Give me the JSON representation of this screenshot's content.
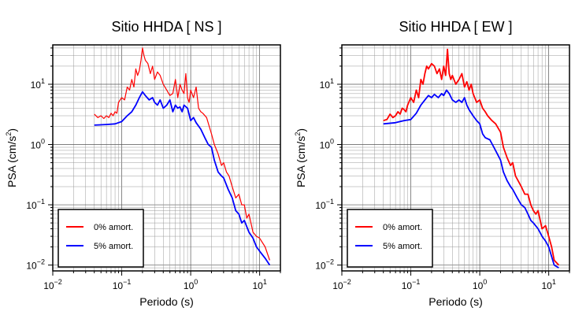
{
  "chart_data": [
    {
      "type": "line",
      "title": "Sitio HHDA [ NS ]",
      "xlabel": "Periodo (s)",
      "ylabel_text": "PSA (cm/s",
      "ylabel_sup": "2",
      "ylabel_close": ")",
      "x_scale": "log",
      "y_scale": "log",
      "xlim": [
        0.01,
        20
      ],
      "ylim": [
        0.008,
        45
      ],
      "grid": true,
      "legend": "bottom-left",
      "x_ticks": [
        {
          "base": "10",
          "exp": "−2"
        },
        {
          "base": "10",
          "exp": "−1"
        },
        {
          "base": "10",
          "exp": "0"
        },
        {
          "base": "10",
          "exp": "1"
        }
      ],
      "y_ticks": [
        {
          "base": "10",
          "exp": "−2"
        },
        {
          "base": "10",
          "exp": "−1"
        },
        {
          "base": "10",
          "exp": "0"
        },
        {
          "base": "10",
          "exp": "1"
        }
      ],
      "series": [
        {
          "name": "0% amort.",
          "color": "#ff0000",
          "x": [
            0.04,
            0.045,
            0.05,
            0.055,
            0.06,
            0.065,
            0.07,
            0.075,
            0.08,
            0.085,
            0.09,
            0.1,
            0.11,
            0.12,
            0.13,
            0.14,
            0.15,
            0.16,
            0.17,
            0.18,
            0.19,
            0.2,
            0.21,
            0.22,
            0.24,
            0.26,
            0.28,
            0.3,
            0.33,
            0.36,
            0.4,
            0.45,
            0.5,
            0.55,
            0.6,
            0.65,
            0.7,
            0.75,
            0.8,
            0.85,
            0.9,
            0.95,
            1.0,
            1.1,
            1.2,
            1.3,
            1.4,
            1.5,
            1.7,
            2.0,
            2.2,
            2.5,
            2.8,
            3.0,
            3.3,
            3.6,
            4.0,
            4.5,
            5.0,
            5.5,
            6.0,
            6.5,
            7.0,
            8.0,
            9.0,
            10.0,
            12.0,
            14.0
          ],
          "y": [
            3.2,
            2.8,
            3.0,
            2.7,
            3.0,
            2.8,
            3.3,
            3.0,
            3.5,
            3.3,
            5.0,
            6.0,
            5.5,
            9.0,
            8.0,
            12.0,
            9.0,
            18.0,
            14.0,
            17.0,
            25.0,
            40.0,
            30.0,
            25.0,
            22.0,
            15.0,
            20.0,
            12.0,
            16.0,
            14.0,
            10.0,
            8.0,
            6.5,
            7.0,
            12.0,
            6.0,
            10.0,
            8.0,
            7.0,
            15.0,
            6.0,
            5.0,
            8.0,
            6.0,
            9.0,
            4.0,
            3.5,
            3.3,
            2.8,
            1.5,
            1.0,
            0.7,
            0.45,
            0.5,
            0.35,
            0.3,
            0.2,
            0.13,
            0.15,
            0.1,
            0.1,
            0.06,
            0.07,
            0.035,
            0.03,
            0.028,
            0.02,
            0.012
          ]
        },
        {
          "name": "5% amort.",
          "color": "#0000ff",
          "x": [
            0.04,
            0.06,
            0.08,
            0.1,
            0.12,
            0.14,
            0.16,
            0.18,
            0.2,
            0.22,
            0.25,
            0.28,
            0.3,
            0.33,
            0.36,
            0.4,
            0.45,
            0.5,
            0.55,
            0.6,
            0.65,
            0.7,
            0.75,
            0.8,
            0.9,
            1.0,
            1.1,
            1.2,
            1.4,
            1.6,
            1.8,
            2.0,
            2.2,
            2.5,
            2.8,
            3.0,
            3.5,
            4.0,
            4.5,
            5.0,
            5.5,
            6.0,
            7.0,
            8.0,
            9.0,
            10.0,
            12.0,
            14.0
          ],
          "y": [
            2.1,
            2.15,
            2.2,
            2.4,
            3.0,
            3.5,
            4.5,
            6.0,
            7.5,
            6.5,
            5.5,
            6.0,
            5.0,
            4.5,
            5.5,
            4.0,
            4.5,
            5.5,
            3.5,
            4.5,
            4.0,
            4.2,
            3.5,
            4.5,
            4.0,
            2.5,
            2.8,
            2.3,
            1.8,
            1.3,
            1.0,
            0.9,
            0.55,
            0.35,
            0.3,
            0.28,
            0.18,
            0.13,
            0.08,
            0.07,
            0.05,
            0.055,
            0.035,
            0.028,
            0.02,
            0.017,
            0.013,
            0.01
          ]
        }
      ]
    },
    {
      "type": "line",
      "title": "Sitio HHDA [ EW ]",
      "xlabel": "Periodo (s)",
      "ylabel_text": "PSA (cm/s",
      "ylabel_sup": "2",
      "ylabel_close": ")",
      "x_scale": "log",
      "y_scale": "log",
      "xlim": [
        0.01,
        20
      ],
      "ylim": [
        0.008,
        45
      ],
      "grid": true,
      "legend": "bottom-left",
      "x_ticks": [
        {
          "base": "10",
          "exp": "−2"
        },
        {
          "base": "10",
          "exp": "−1"
        },
        {
          "base": "10",
          "exp": "0"
        },
        {
          "base": "10",
          "exp": "1"
        }
      ],
      "y_ticks": [
        {
          "base": "10",
          "exp": "−2"
        },
        {
          "base": "10",
          "exp": "−1"
        },
        {
          "base": "10",
          "exp": "0"
        },
        {
          "base": "10",
          "exp": "1"
        }
      ],
      "series": [
        {
          "name": "0% amort.",
          "color": "#ff0000",
          "x": [
            0.04,
            0.045,
            0.05,
            0.055,
            0.06,
            0.065,
            0.07,
            0.075,
            0.08,
            0.085,
            0.09,
            0.1,
            0.11,
            0.12,
            0.13,
            0.14,
            0.15,
            0.16,
            0.17,
            0.18,
            0.2,
            0.22,
            0.24,
            0.26,
            0.28,
            0.3,
            0.32,
            0.34,
            0.36,
            0.38,
            0.4,
            0.45,
            0.5,
            0.55,
            0.6,
            0.65,
            0.7,
            0.75,
            0.8,
            0.9,
            1.0,
            1.1,
            1.2,
            1.3,
            1.5,
            1.7,
            2.0,
            2.2,
            2.5,
            2.8,
            3.0,
            3.3,
            3.6,
            4.0,
            4.5,
            5.0,
            5.5,
            6.0,
            6.5,
            7.0,
            8.0,
            9.0,
            10.0,
            11.0,
            12.0,
            14.0
          ],
          "y": [
            2.5,
            2.6,
            3.2,
            2.8,
            3.0,
            3.5,
            3.2,
            4.0,
            3.8,
            3.5,
            4.5,
            6.0,
            5.0,
            8.0,
            6.0,
            12.0,
            10.0,
            15.0,
            20.0,
            18.0,
            22.0,
            20.0,
            15.0,
            18.0,
            12.0,
            20.0,
            14.0,
            38.0,
            15.0,
            12.0,
            14.0,
            10.0,
            12.0,
            15.0,
            9.0,
            11.0,
            8.0,
            10.0,
            7.0,
            5.0,
            5.5,
            4.0,
            3.5,
            3.0,
            2.5,
            2.2,
            1.6,
            0.9,
            0.6,
            0.45,
            0.5,
            0.3,
            0.25,
            0.2,
            0.15,
            0.15,
            0.1,
            0.08,
            0.07,
            0.08,
            0.04,
            0.045,
            0.03,
            0.02,
            0.012,
            0.01
          ]
        },
        {
          "name": "5% amort.",
          "color": "#0000ff",
          "x": [
            0.04,
            0.06,
            0.08,
            0.1,
            0.12,
            0.14,
            0.16,
            0.18,
            0.2,
            0.22,
            0.25,
            0.28,
            0.3,
            0.33,
            0.36,
            0.4,
            0.45,
            0.5,
            0.55,
            0.6,
            0.65,
            0.7,
            0.8,
            0.9,
            1.0,
            1.1,
            1.2,
            1.4,
            1.6,
            1.8,
            2.0,
            2.2,
            2.5,
            2.8,
            3.0,
            3.5,
            4.0,
            4.5,
            5.0,
            5.5,
            6.0,
            7.0,
            8.0,
            9.0,
            10.0,
            12.0,
            14.0
          ],
          "y": [
            2.2,
            2.3,
            2.5,
            2.6,
            3.3,
            4.5,
            5.5,
            6.5,
            6.0,
            6.8,
            6.0,
            7.0,
            6.5,
            8.0,
            7.0,
            5.5,
            5.0,
            5.5,
            5.0,
            6.0,
            4.5,
            3.8,
            3.0,
            2.5,
            2.2,
            1.5,
            1.3,
            1.2,
            0.9,
            0.7,
            0.55,
            0.35,
            0.25,
            0.2,
            0.18,
            0.13,
            0.1,
            0.09,
            0.07,
            0.055,
            0.05,
            0.04,
            0.03,
            0.025,
            0.02,
            0.01,
            0.009
          ]
        }
      ]
    }
  ]
}
